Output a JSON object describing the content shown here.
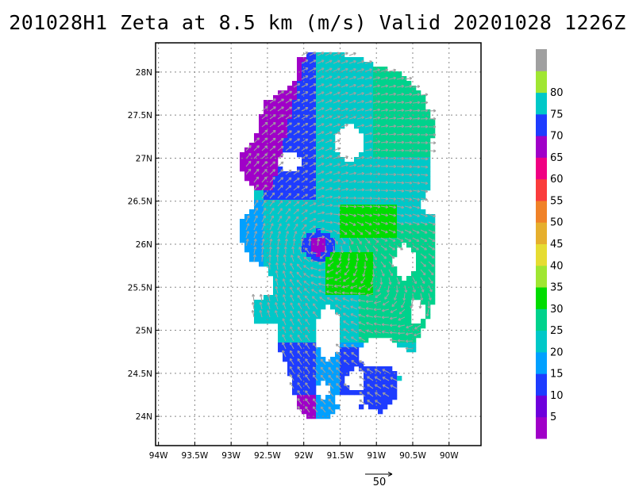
{
  "title": "201028H1 Zeta at 8.5 km (m/s) Valid 20201028 1226Z",
  "colors": {
    "frame": "#000000",
    "grid": "#888888",
    "arrow": "#a0a0a0"
  },
  "chart_data": {
    "type": "heatmap",
    "title": "201028H1 Zeta at 8.5 km (m/s) Valid 20201028 1226Z",
    "x_ticks": [
      {
        "value": -94.0,
        "label": "94W"
      },
      {
        "value": -93.5,
        "label": "93.5W"
      },
      {
        "value": -93.0,
        "label": "93W"
      },
      {
        "value": -92.5,
        "label": "92.5W"
      },
      {
        "value": -92.0,
        "label": "92W"
      },
      {
        "value": -91.5,
        "label": "91.5W"
      },
      {
        "value": -91.0,
        "label": "91W"
      },
      {
        "value": -90.5,
        "label": "90.5W"
      },
      {
        "value": -90.0,
        "label": "90W"
      }
    ],
    "y_ticks": [
      {
        "value": 24.0,
        "label": "24N"
      },
      {
        "value": 24.5,
        "label": "24.5N"
      },
      {
        "value": 25.0,
        "label": "25N"
      },
      {
        "value": 25.5,
        "label": "25.5N"
      },
      {
        "value": 26.0,
        "label": "26N"
      },
      {
        "value": 26.5,
        "label": "26.5N"
      },
      {
        "value": 27.0,
        "label": "27N"
      },
      {
        "value": 27.5,
        "label": "27.5N"
      },
      {
        "value": 28.0,
        "label": "28N"
      }
    ],
    "xlim": [
      -94.04,
      -89.56
    ],
    "ylim": [
      23.66,
      28.34
    ],
    "grid": true,
    "colorbar": {
      "placement": "right",
      "levels": [
        {
          "label": "",
          "color": "#a000c8"
        },
        {
          "label": "5",
          "color": "#6e00dc"
        },
        {
          "label": "10",
          "color": "#1e3cff"
        },
        {
          "label": "15",
          "color": "#00a0ff"
        },
        {
          "label": "20",
          "color": "#00c8c8"
        },
        {
          "label": "25",
          "color": "#00d28c"
        },
        {
          "label": "30",
          "color": "#00dc00"
        },
        {
          "label": "35",
          "color": "#a0e632"
        },
        {
          "label": "40",
          "color": "#e6dc32"
        },
        {
          "label": "45",
          "color": "#e6af2d"
        },
        {
          "label": "50",
          "color": "#f08228"
        },
        {
          "label": "55",
          "color": "#fa3c3c"
        },
        {
          "label": "60",
          "color": "#f00082"
        },
        {
          "label": "65",
          "color": "#a000c8"
        },
        {
          "label": "70",
          "color": "#1e3cff"
        },
        {
          "label": "75",
          "color": "#00c8c8"
        },
        {
          "label": "80",
          "color": "#a0e632"
        },
        {
          "label": "",
          "color": "#a0a0a0"
        }
      ]
    },
    "vortex_center": {
      "lon": -91.8,
      "lat": 25.98
    },
    "vector_reference": {
      "label": "50",
      "value": 50
    }
  }
}
